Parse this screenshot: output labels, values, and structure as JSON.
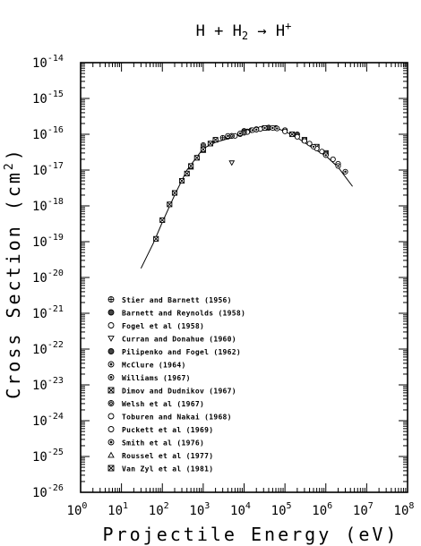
{
  "chart_data": {
    "type": "scatter",
    "title": {
      "parts": [
        "H",
        "+",
        "H",
        "2",
        "→",
        "H",
        "+"
      ],
      "text": "H + H2 → H+"
    },
    "xlabel": "Projectile Energy (eV)",
    "ylabel": "Cross Section (cm2)",
    "ylabel_parts": {
      "main": "Cross Section (cm",
      "sup": "2",
      "close": ")"
    },
    "x_scale": "log",
    "y_scale": "log",
    "xlim": [
      1,
      100000000
    ],
    "ylim": [
      1e-26,
      1e-14
    ],
    "x_ticks": [
      {
        "value": 1,
        "base": "10",
        "exp": "0"
      },
      {
        "value": 10,
        "base": "10",
        "exp": "1"
      },
      {
        "value": 100,
        "base": "10",
        "exp": "2"
      },
      {
        "value": 1000,
        "base": "10",
        "exp": "3"
      },
      {
        "value": 10000,
        "base": "10",
        "exp": "4"
      },
      {
        "value": 100000,
        "base": "10",
        "exp": "5"
      },
      {
        "value": 1000000,
        "base": "10",
        "exp": "6"
      },
      {
        "value": 10000000,
        "base": "10",
        "exp": "7"
      },
      {
        "value": 100000000,
        "base": "10",
        "exp": "8"
      }
    ],
    "y_ticks": [
      {
        "value": 1e-14,
        "base": "10",
        "exp": "-14"
      },
      {
        "value": 1e-15,
        "base": "10",
        "exp": "-15"
      },
      {
        "value": 1e-16,
        "base": "10",
        "exp": "-16"
      },
      {
        "value": 1e-17,
        "base": "10",
        "exp": "-17"
      },
      {
        "value": 1e-18,
        "base": "10",
        "exp": "-18"
      },
      {
        "value": 1e-19,
        "base": "10",
        "exp": "-19"
      },
      {
        "value": 1e-20,
        "base": "10",
        "exp": "-20"
      },
      {
        "value": 1e-21,
        "base": "10",
        "exp": "-21"
      },
      {
        "value": 1e-22,
        "base": "10",
        "exp": "-22"
      },
      {
        "value": 1e-23,
        "base": "10",
        "exp": "-23"
      },
      {
        "value": 1e-24,
        "base": "10",
        "exp": "-24"
      },
      {
        "value": 1e-25,
        "base": "10",
        "exp": "-25"
      },
      {
        "value": 1e-26,
        "base": "10",
        "exp": "-26"
      }
    ],
    "grid": false,
    "legend_position": "lower-left",
    "fit_curve": {
      "x": [
        30,
        60,
        100,
        200,
        400,
        1000,
        2000,
        5000,
        10000,
        20000,
        40000,
        70000,
        100000,
        200000,
        500000,
        1000000,
        2000000,
        4500000
      ],
      "y": [
        1.8e-20,
        9e-20,
        3.5e-19,
        2e-18,
        1e-17,
        4e-17,
        6e-17,
        8e-17,
        1.1e-16,
        1.4e-16,
        1.55e-16,
        1.4e-16,
        1.2e-16,
        8e-17,
        4e-17,
        2.5e-17,
        1.2e-17,
        3.5e-18
      ]
    },
    "series": [
      {
        "name": "Stier and Barnett (1956)",
        "marker": "circle-plus",
        "x": [
          3000,
          5000,
          8000,
          12000,
          20000,
          35000
        ],
        "y": [
          8e-17,
          9e-17,
          1.05e-16,
          1.2e-16,
          1.35e-16,
          1.5e-16
        ]
      },
      {
        "name": "Barnett and Reynolds (1958)",
        "marker": "circle-filled",
        "x": [
          4000,
          8000,
          15000,
          30000,
          60000,
          100000,
          200000
        ],
        "y": [
          8.5e-17,
          1e-16,
          1.3e-16,
          1.5e-16,
          1.5e-16,
          1.3e-16,
          1e-16
        ]
      },
      {
        "name": "Fogel et al (1958)",
        "marker": "circle",
        "x": [
          6000,
          12000,
          25000,
          40000
        ],
        "y": [
          9e-17,
          1.15e-16,
          1.4e-16,
          1.5e-16
        ]
      },
      {
        "name": "Curran and Donahue (1960)",
        "marker": "triangle-down",
        "x": [
          5000
        ],
        "y": [
          1.6e-17
        ]
      },
      {
        "name": "Pilipenko and Fogel (1962)",
        "marker": "circle-filled",
        "x": [
          10000,
          20000,
          40000,
          60000
        ],
        "y": [
          1.25e-16,
          1.4e-16,
          1.55e-16,
          1.5e-16
        ]
      },
      {
        "name": "McClure (1964)",
        "marker": "circle-target",
        "x": [
          2000,
          4000,
          8000,
          16000,
          32000,
          64000
        ],
        "y": [
          7e-17,
          9e-17,
          1.05e-16,
          1.3e-16,
          1.5e-16,
          1.45e-16
        ]
      },
      {
        "name": "Williams (1967)",
        "marker": "circle-target",
        "x": [
          5000,
          10000,
          20000,
          50000,
          100000
        ],
        "y": [
          9e-17,
          1.1e-16,
          1.35e-16,
          1.5e-16,
          1.3e-16
        ]
      },
      {
        "name": "Dimov and Dudnikov (1967)",
        "marker": "square-x",
        "x": [
          150000,
          300000,
          600000,
          1000000
        ],
        "y": [
          1e-16,
          7e-17,
          4.5e-17,
          3e-17
        ]
      },
      {
        "name": "Welsh et al (1967)",
        "marker": "circle-diamond",
        "x": [
          1000,
          2000,
          5000,
          10000
        ],
        "y": [
          5e-17,
          7e-17,
          9e-17,
          1.1e-16
        ]
      },
      {
        "name": "Toburen and Nakai (1968)",
        "marker": "circle",
        "x": [
          100000,
          200000,
          400000,
          800000,
          1500000
        ],
        "y": [
          1.2e-16,
          8.5e-17,
          5.5e-17,
          3.3e-17,
          2e-17
        ]
      },
      {
        "name": "Puckett et al (1969)",
        "marker": "circle",
        "x": [
          300000,
          600000,
          1000000,
          2000000
        ],
        "y": [
          6.5e-17,
          4e-17,
          2.8e-17,
          1.5e-17
        ]
      },
      {
        "name": "Smith et al (1976)",
        "marker": "circle-target",
        "x": [
          500000,
          1000000,
          2000000,
          3000000
        ],
        "y": [
          4.5e-17,
          2.6e-17,
          1.3e-17,
          9e-18
        ]
      },
      {
        "name": "Roussel et al (1977)",
        "marker": "triangle-up",
        "x": [
          500,
          700,
          1000
        ],
        "y": [
          1.2e-17,
          2.2e-17,
          3.5e-17
        ]
      },
      {
        "name": "Van Zyl et al (1981)",
        "marker": "square-x",
        "x": [
          70,
          100,
          150,
          200,
          300,
          400,
          500,
          700,
          1000,
          1500,
          2000
        ],
        "y": [
          1.2e-19,
          4e-19,
          1.1e-18,
          2.3e-18,
          5e-18,
          8e-18,
          1.3e-17,
          2.2e-17,
          3.8e-17,
          5.5e-17,
          7e-17
        ]
      }
    ]
  }
}
